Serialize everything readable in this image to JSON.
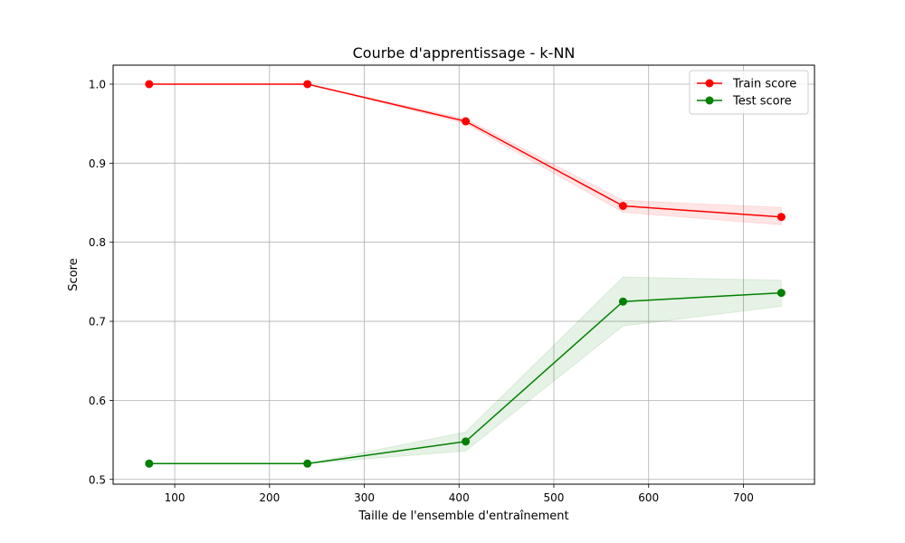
{
  "chart_data": {
    "type": "line",
    "title": "Courbe d'apprentissage - k-NN",
    "xlabel": "Taille de l'ensemble d'entraînement",
    "ylabel": "Score",
    "xlim": [
      35,
      775
    ],
    "ylim": [
      0.494,
      1.024
    ],
    "xticks": [
      100,
      200,
      300,
      400,
      500,
      600,
      700
    ],
    "yticks": [
      0.5,
      0.6,
      0.7,
      0.8,
      0.9,
      1.0
    ],
    "ytick_labels": [
      "0.5",
      "0.6",
      "0.7",
      "0.8",
      "0.9",
      "1.0"
    ],
    "grid": true,
    "legend_position": "upper-right",
    "x": [
      73,
      240,
      407,
      573,
      740
    ],
    "series": [
      {
        "name": "Train score",
        "color": "#ff0000",
        "marker": "circle",
        "values": [
          1.0,
          1.0,
          0.953,
          0.846,
          0.832
        ],
        "band_lower": [
          1.0,
          1.0,
          0.95,
          0.838,
          0.822
        ],
        "band_upper": [
          1.0,
          1.0,
          0.956,
          0.853,
          0.844
        ]
      },
      {
        "name": "Test score",
        "color": "#008000",
        "marker": "circle",
        "values": [
          0.52,
          0.52,
          0.548,
          0.725,
          0.736
        ],
        "band_lower": [
          0.52,
          0.52,
          0.536,
          0.694,
          0.719
        ],
        "band_upper": [
          0.52,
          0.52,
          0.56,
          0.756,
          0.752
        ]
      }
    ]
  }
}
